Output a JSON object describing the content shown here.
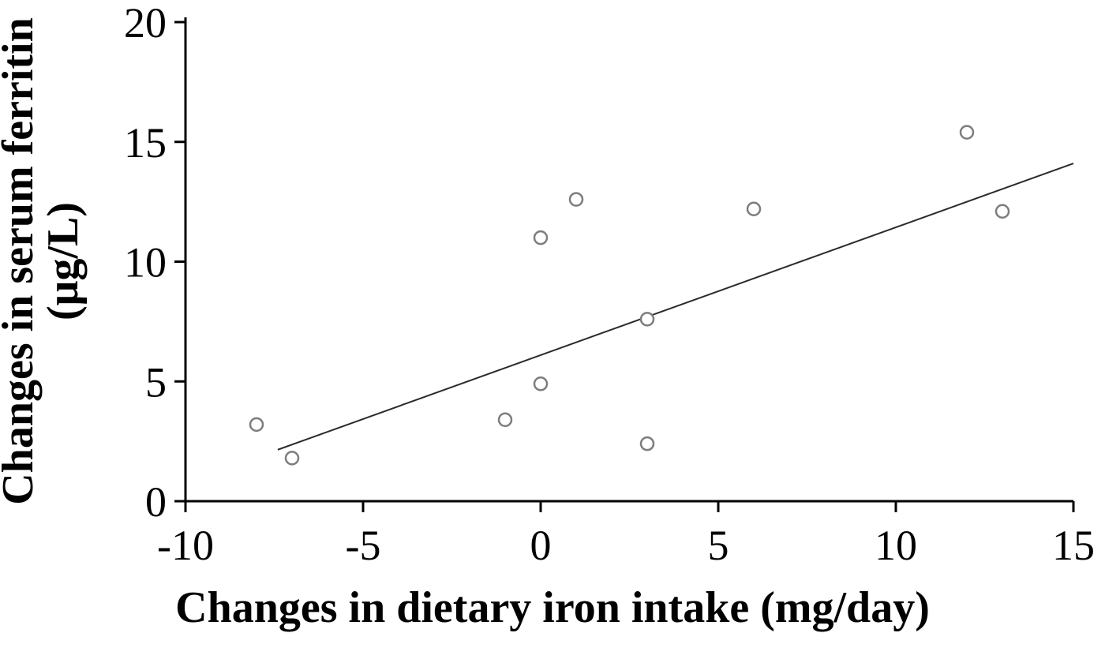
{
  "chart_data": {
    "type": "scatter",
    "title": "",
    "xlabel": "Changes in dietary iron intake (mg/day)",
    "ylabel_line1": "Changes in serum ferritin",
    "ylabel_line2": "(μg/L)",
    "xlim": [
      -10,
      15
    ],
    "ylim": [
      0,
      20
    ],
    "xticks": [
      -10,
      -5,
      0,
      5,
      10,
      15
    ],
    "yticks": [
      0,
      5,
      10,
      15,
      20
    ],
    "grid": false,
    "legend": null,
    "points": [
      {
        "x": -8,
        "y": 3.2
      },
      {
        "x": -7,
        "y": 1.8
      },
      {
        "x": -1,
        "y": 3.4
      },
      {
        "x": 0,
        "y": 4.9
      },
      {
        "x": 0,
        "y": 11.0
      },
      {
        "x": 1,
        "y": 12.6
      },
      {
        "x": 3,
        "y": 2.4
      },
      {
        "x": 3,
        "y": 7.6
      },
      {
        "x": 6,
        "y": 12.2
      },
      {
        "x": 12,
        "y": 15.4
      },
      {
        "x": 13,
        "y": 12.1
      }
    ],
    "trendline": {
      "x1": -7.4,
      "y1": 2.15,
      "x2": 15,
      "y2": 14.1
    },
    "marker": {
      "shape": "circle-open",
      "color": "#7d7d7d",
      "radius_px": 8
    },
    "line_color": "#2b2b2b",
    "axis_color": "#000000"
  }
}
